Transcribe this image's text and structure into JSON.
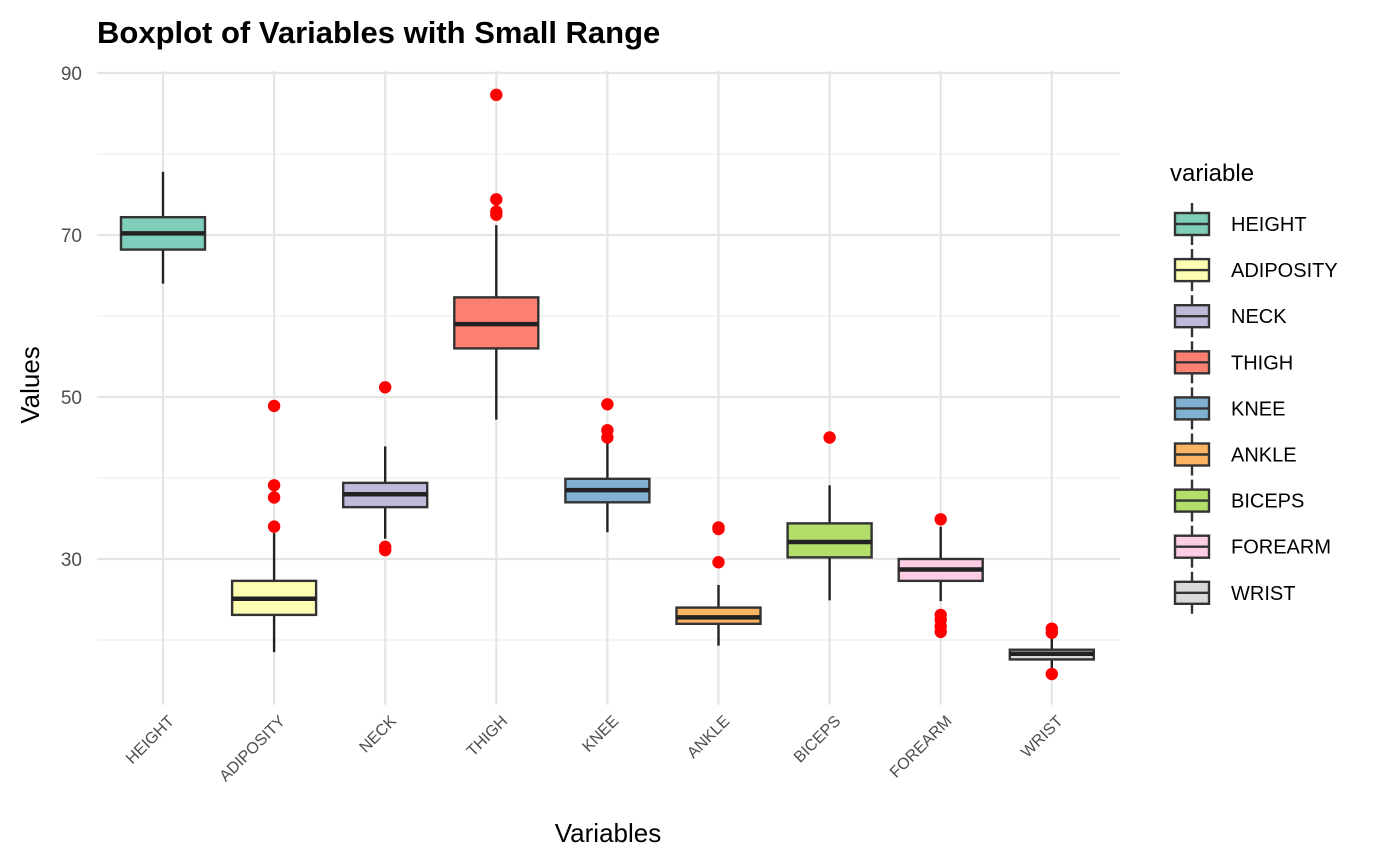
{
  "chart_data": {
    "type": "boxplot",
    "title": "Boxplot of Variables with Small Range",
    "xlabel": "Variables",
    "ylabel": "Values",
    "ylim": [
      12,
      92
    ],
    "y_ticks": [
      30,
      50,
      70,
      90
    ],
    "y_minor_ticks": [
      20,
      40,
      60,
      80
    ],
    "grid": true,
    "legend": {
      "title": "variable",
      "position": "right"
    },
    "outlier_color": "#ff0000",
    "categories": [
      "HEIGHT",
      "ADIPOSITY",
      "NECK",
      "THIGH",
      "KNEE",
      "ANKLE",
      "BICEPS",
      "FOREARM",
      "WRIST"
    ],
    "series": [
      {
        "name": "HEIGHT",
        "color": "#7fcdbb",
        "whisker_low": 64,
        "q1": 68.2,
        "median": 70.2,
        "q3": 72.2,
        "whisker_high": 77.8,
        "outliers": []
      },
      {
        "name": "ADIPOSITY",
        "color": "#ffffb3",
        "whisker_low": 18.5,
        "q1": 23.1,
        "median": 25.1,
        "q3": 27.3,
        "whisker_high": 33.2,
        "outliers": [
          34,
          37.6,
          39.1,
          48.9
        ]
      },
      {
        "name": "NECK",
        "color": "#bebada",
        "whisker_low": 32.5,
        "q1": 36.4,
        "median": 38,
        "q3": 39.4,
        "whisker_high": 43.9,
        "outliers": [
          31.1,
          31.5,
          51.2
        ]
      },
      {
        "name": "THIGH",
        "color": "#fb8072",
        "whisker_low": 47.2,
        "q1": 56,
        "median": 59,
        "q3": 62.3,
        "whisker_high": 71.2,
        "outliers": [
          72.5,
          72.9,
          74.4,
          87.3
        ]
      },
      {
        "name": "KNEE",
        "color": "#80b1d3",
        "whisker_low": 33.3,
        "q1": 37,
        "median": 38.5,
        "q3": 39.9,
        "whisker_high": 44.5,
        "outliers": [
          45,
          45.9,
          49.1
        ]
      },
      {
        "name": "ANKLE",
        "color": "#fdb462",
        "whisker_low": 19.3,
        "q1": 22,
        "median": 22.8,
        "q3": 24,
        "whisker_high": 26.8,
        "outliers": [
          29.6,
          33.7,
          33.9
        ]
      },
      {
        "name": "BICEPS",
        "color": "#b3de69",
        "whisker_low": 24.9,
        "q1": 30.2,
        "median": 32.1,
        "q3": 34.4,
        "whisker_high": 39.1,
        "outliers": [
          45
        ]
      },
      {
        "name": "FOREARM",
        "color": "#fccde5",
        "whisker_low": 24.8,
        "q1": 27.3,
        "median": 28.7,
        "q3": 30,
        "whisker_high": 34,
        "outliers": [
          21,
          21.7,
          22.5,
          23.1,
          34.9
        ]
      },
      {
        "name": "WRIST",
        "color": "#d9d9d9",
        "whisker_low": 16.1,
        "q1": 17.6,
        "median": 18.3,
        "q3": 18.8,
        "whisker_high": 20.3,
        "outliers": [
          15.8,
          20.9,
          21.4
        ]
      }
    ]
  }
}
